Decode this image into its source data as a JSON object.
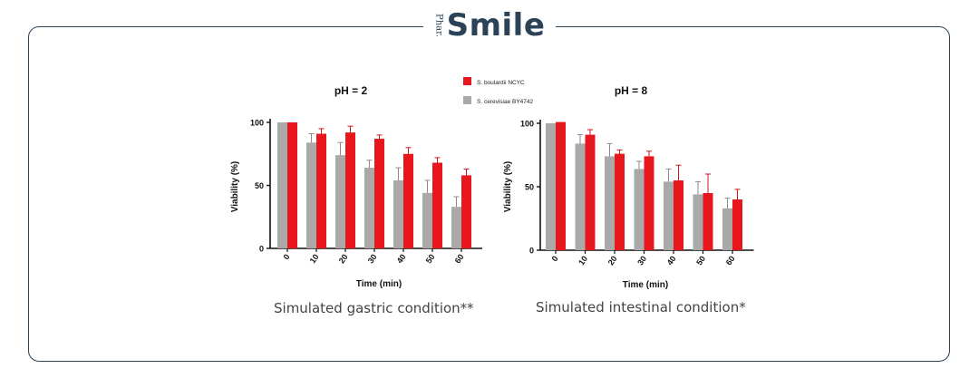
{
  "brand": {
    "prefix": "Phar.",
    "name": "Smile",
    "color": "#2b4257"
  },
  "legend": [
    {
      "label": "S. boulardii NCYC",
      "color": "#e8171e"
    },
    {
      "label": "S. cerevisiae BY4742",
      "color": "#a9a9a9"
    }
  ],
  "chart_data": [
    {
      "type": "bar",
      "title": "pH = 2",
      "xlabel": "Time (min)",
      "ylabel": "Viability (%)",
      "ylim": [
        0,
        100
      ],
      "yticks": [
        0,
        50,
        100
      ],
      "categories": [
        "0",
        "10",
        "20",
        "30",
        "40",
        "50",
        "60"
      ],
      "series": [
        {
          "name": "S. cerevisiae BY4742",
          "color": "#a9a9a9",
          "values": [
            100,
            84,
            74,
            64,
            54,
            44,
            33
          ],
          "errors": [
            0,
            7,
            10,
            6,
            10,
            10,
            8
          ]
        },
        {
          "name": "S. boulardii NCYC",
          "color": "#e8171e",
          "values": [
            100,
            91,
            92,
            87,
            75,
            68,
            58
          ],
          "errors": [
            0,
            4,
            5,
            3,
            5,
            4,
            5
          ]
        }
      ],
      "caption": "Simulated gastric condition**"
    },
    {
      "type": "bar",
      "title": "pH = 8",
      "xlabel": "Time (min)",
      "ylabel": "Viability (%)",
      "ylim": [
        0,
        100
      ],
      "yticks": [
        0,
        50,
        100
      ],
      "categories": [
        "0",
        "10",
        "20",
        "30",
        "40",
        "50",
        "60"
      ],
      "series": [
        {
          "name": "S. cerevisiae BY4742",
          "color": "#a9a9a9",
          "values": [
            100,
            84,
            74,
            64,
            54,
            44,
            33
          ],
          "errors": [
            0,
            7,
            10,
            6,
            10,
            10,
            8
          ]
        },
        {
          "name": "S. boulardii NCYC",
          "color": "#e8171e",
          "values": [
            101,
            91,
            76,
            74,
            55,
            45,
            40
          ],
          "errors": [
            0,
            4,
            3,
            4,
            12,
            15,
            8
          ]
        }
      ],
      "caption": "Simulated intestinal condition*"
    }
  ]
}
